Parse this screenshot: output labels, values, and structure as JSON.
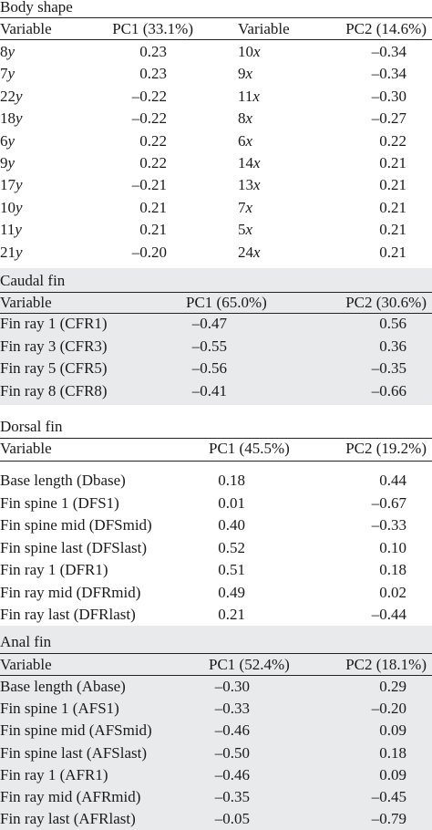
{
  "sections": {
    "body_shape": {
      "title": "Body shape",
      "headers": [
        "Variable",
        "PC1 (33.1%)",
        "Variable",
        "PC2 (14.6%)"
      ],
      "rows": [
        {
          "v1n": "8",
          "v1s": "y",
          "pc1": "0.23",
          "v2n": "10",
          "v2s": "x",
          "pc2": "–0.34"
        },
        {
          "v1n": "7",
          "v1s": "y",
          "pc1": "0.23",
          "v2n": "9",
          "v2s": "x",
          "pc2": "–0.34"
        },
        {
          "v1n": "22",
          "v1s": "y",
          "pc1": "–0.22",
          "v2n": "11",
          "v2s": "x",
          "pc2": "–0.30"
        },
        {
          "v1n": "18",
          "v1s": "y",
          "pc1": "–0.22",
          "v2n": "8",
          "v2s": "x",
          "pc2": "–0.27"
        },
        {
          "v1n": "6",
          "v1s": "y",
          "pc1": "0.22",
          "v2n": "6",
          "v2s": "x",
          "pc2": "0.22"
        },
        {
          "v1n": "9",
          "v1s": "y",
          "pc1": "0.22",
          "v2n": "14",
          "v2s": "x",
          "pc2": "0.21"
        },
        {
          "v1n": "17",
          "v1s": "y",
          "pc1": "–0.21",
          "v2n": "13",
          "v2s": "x",
          "pc2": "0.21"
        },
        {
          "v1n": "10",
          "v1s": "y",
          "pc1": "0.21",
          "v2n": "7",
          "v2s": "x",
          "pc2": "0.21"
        },
        {
          "v1n": "11",
          "v1s": "y",
          "pc1": "0.21",
          "v2n": "5",
          "v2s": "x",
          "pc2": "0.21"
        },
        {
          "v1n": "21",
          "v1s": "y",
          "pc1": "–0.20",
          "v2n": "24",
          "v2s": "x",
          "pc2": "0.21"
        }
      ]
    },
    "caudal_fin": {
      "title": "Caudal fin",
      "headers": [
        "Variable",
        "PC1 (65.0%)",
        "PC2 (30.6%)"
      ],
      "rows": [
        {
          "var": "Fin ray 1 (CFR1)",
          "pc1": "–0.47",
          "pc2": "0.56"
        },
        {
          "var": "Fin ray 3 (CFR3)",
          "pc1": "–0.55",
          "pc2": "0.36"
        },
        {
          "var": "Fin ray 5 (CFR5)",
          "pc1": "–0.56",
          "pc2": "–0.35"
        },
        {
          "var": "Fin ray 8 (CFR8)",
          "pc1": "–0.41",
          "pc2": "–0.66"
        }
      ]
    },
    "dorsal_fin": {
      "title": "Dorsal fin",
      "headers": [
        "Variable",
        "PC1 (45.5%)",
        "PC2 (19.2%)"
      ],
      "rows": [
        {
          "var": "Base length (Dbase)",
          "pc1": "0.18",
          "pc2": "0.44"
        },
        {
          "var": "Fin spine 1 (DFS1)",
          "pc1": "0.01",
          "pc2": "–0.67"
        },
        {
          "var": "Fin spine mid (DFSmid)",
          "pc1": "0.40",
          "pc2": "–0.33"
        },
        {
          "var": "Fin spine last (DFSlast)",
          "pc1": "0.52",
          "pc2": "0.10"
        },
        {
          "var": "Fin ray 1 (DFR1)",
          "pc1": "0.51",
          "pc2": "0.18"
        },
        {
          "var": "Fin ray mid (DFRmid)",
          "pc1": "0.49",
          "pc2": "0.02"
        },
        {
          "var": "Fin ray last (DFRlast)",
          "pc1": "0.21",
          "pc2": "–0.44"
        }
      ]
    },
    "anal_fin": {
      "title": "Anal fin",
      "headers": [
        "Variable",
        "PC1 (52.4%)",
        "PC2 (18.1%)"
      ],
      "rows": [
        {
          "var": "Base length (Abase)",
          "pc1": "–0.30",
          "pc2": "0.29"
        },
        {
          "var": "Fin spine 1 (AFS1)",
          "pc1": "–0.33",
          "pc2": "–0.20"
        },
        {
          "var": "Fin spine mid (AFSmid)",
          "pc1": "–0.46",
          "pc2": "0.09"
        },
        {
          "var": "Fin spine last (AFSlast)",
          "pc1": "–0.50",
          "pc2": "0.18"
        },
        {
          "var": "Fin ray 1 (AFR1)",
          "pc1": "–0.46",
          "pc2": "0.09"
        },
        {
          "var": "Fin ray mid (AFRmid)",
          "pc1": "–0.35",
          "pc2": "–0.45"
        },
        {
          "var": "Fin ray last (AFRlast)",
          "pc1": "–0.05",
          "pc2": "–0.79"
        }
      ]
    }
  }
}
